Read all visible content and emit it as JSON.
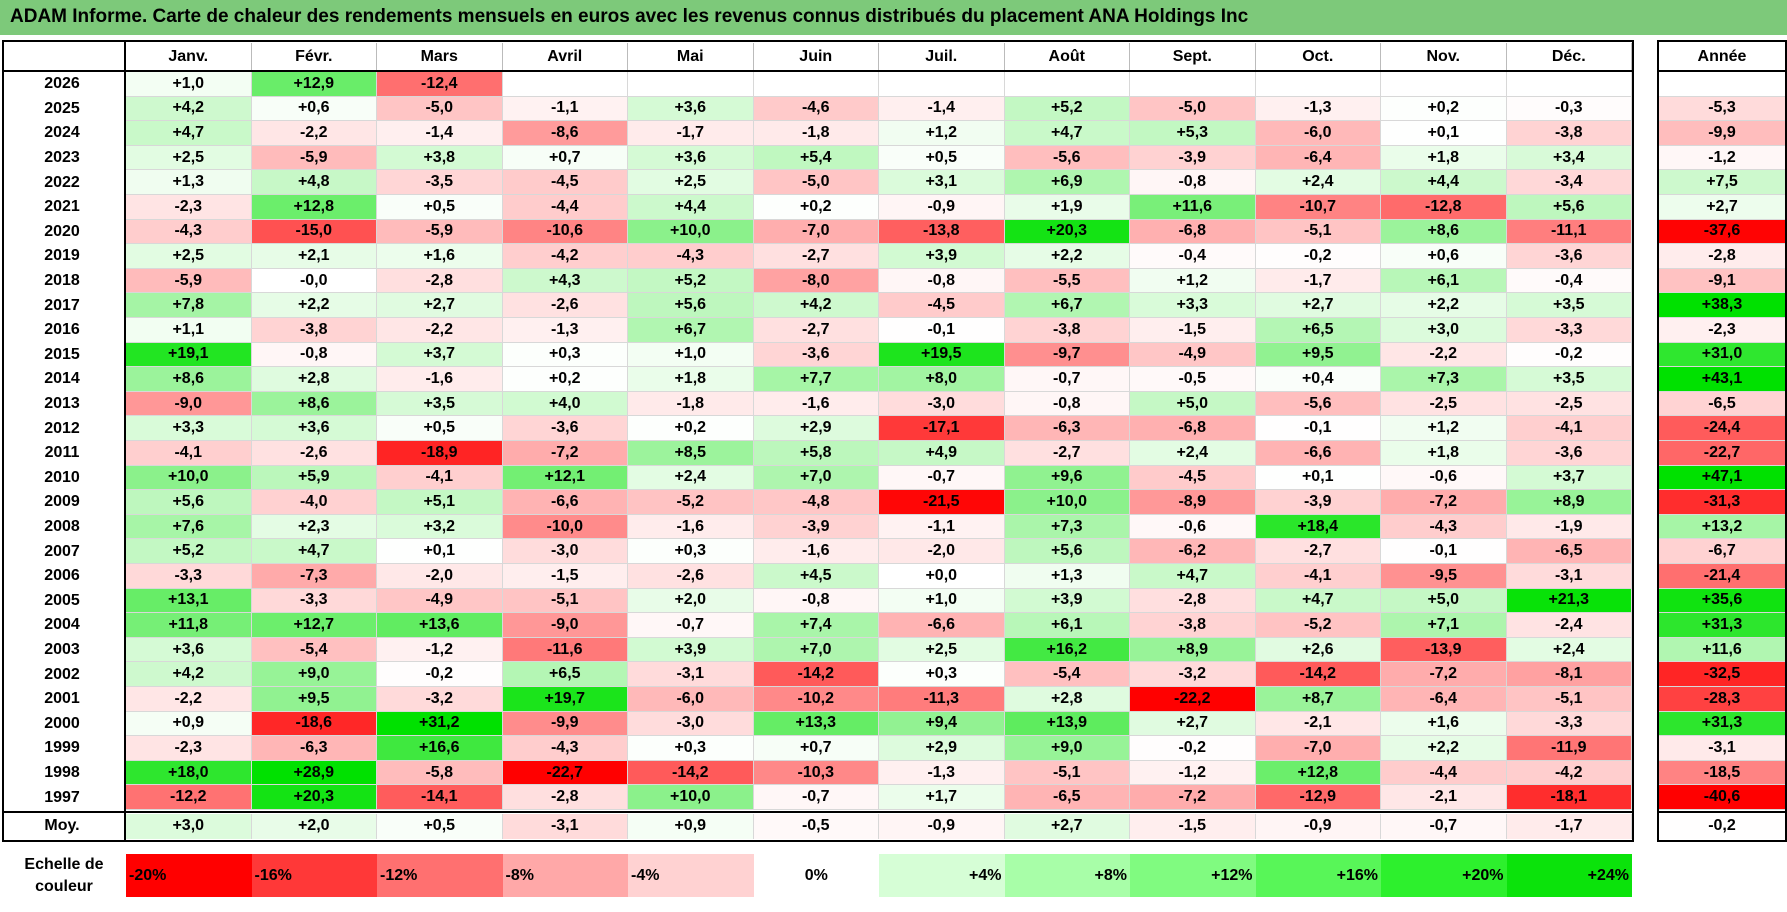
{
  "title": "ADAM Informe. Carte de chaleur des rendements mensuels en euros avec les revenus connus distribués du placement ANA Holdings Inc",
  "chart_data": {
    "type": "heatmap",
    "title": "ADAM Informe. Carte de chaleur des rendements mensuels en euros avec les revenus connus distribués du placement ANA Holdings Inc",
    "columns": [
      "Janv.",
      "Févr.",
      "Mars",
      "Avril",
      "Mai",
      "Juin",
      "Juil.",
      "Août",
      "Sept.",
      "Oct.",
      "Nov.",
      "Déc."
    ],
    "year_column_label": "Année",
    "avg_row_label": "Moy.",
    "rows": [
      {
        "year": "2026",
        "months": [
          "+1,0",
          "+12,9",
          "-12,4",
          "",
          "",
          "",
          "",
          "",
          "",
          "",
          "",
          ""
        ],
        "annual": ""
      },
      {
        "year": "2025",
        "months": [
          "+4,2",
          "+0,6",
          "-5,0",
          "-1,1",
          "+3,6",
          "-4,6",
          "-1,4",
          "+5,2",
          "-5,0",
          "-1,3",
          "+0,2",
          "-0,3"
        ],
        "annual": "-5,3"
      },
      {
        "year": "2024",
        "months": [
          "+4,7",
          "-2,2",
          "-1,4",
          "-8,6",
          "-1,7",
          "-1,8",
          "+1,2",
          "+4,7",
          "+5,3",
          "-6,0",
          "+0,1",
          "-3,8"
        ],
        "annual": "-9,9"
      },
      {
        "year": "2023",
        "months": [
          "+2,5",
          "-5,9",
          "+3,8",
          "+0,7",
          "+3,6",
          "+5,4",
          "+0,5",
          "-5,6",
          "-3,9",
          "-6,4",
          "+1,8",
          "+3,4"
        ],
        "annual": "-1,2"
      },
      {
        "year": "2022",
        "months": [
          "+1,3",
          "+4,8",
          "-3,5",
          "-4,5",
          "+2,5",
          "-5,0",
          "+3,1",
          "+6,9",
          "-0,8",
          "+2,4",
          "+4,4",
          "-3,4"
        ],
        "annual": "+7,5"
      },
      {
        "year": "2021",
        "months": [
          "-2,3",
          "+12,8",
          "+0,5",
          "-4,4",
          "+4,4",
          "+0,2",
          "-0,9",
          "+1,9",
          "+11,6",
          "-10,7",
          "-12,8",
          "+5,6"
        ],
        "annual": "+2,7"
      },
      {
        "year": "2020",
        "months": [
          "-4,3",
          "-15,0",
          "-5,9",
          "-10,6",
          "+10,0",
          "-7,0",
          "-13,8",
          "+20,3",
          "-6,8",
          "-5,1",
          "+8,6",
          "-11,1"
        ],
        "annual": "-37,6"
      },
      {
        "year": "2019",
        "months": [
          "+2,5",
          "+2,1",
          "+1,6",
          "-4,2",
          "-4,3",
          "-2,7",
          "+3,9",
          "+2,2",
          "-0,4",
          "-0,2",
          "+0,6",
          "-3,6"
        ],
        "annual": "-2,8"
      },
      {
        "year": "2018",
        "months": [
          "-5,9",
          "-0,0",
          "-2,8",
          "+4,3",
          "+5,2",
          "-8,0",
          "-0,8",
          "-5,5",
          "+1,2",
          "-1,7",
          "+6,1",
          "-0,4"
        ],
        "annual": "-9,1"
      },
      {
        "year": "2017",
        "months": [
          "+7,8",
          "+2,2",
          "+2,7",
          "-2,6",
          "+5,6",
          "+4,2",
          "-4,5",
          "+6,7",
          "+3,3",
          "+2,7",
          "+2,2",
          "+3,5"
        ],
        "annual": "+38,3"
      },
      {
        "year": "2016",
        "months": [
          "+1,1",
          "-3,8",
          "-2,2",
          "-1,3",
          "+6,7",
          "-2,7",
          "-0,1",
          "-3,8",
          "-1,5",
          "+6,5",
          "+3,0",
          "-3,3"
        ],
        "annual": "-2,3"
      },
      {
        "year": "2015",
        "months": [
          "+19,1",
          "-0,8",
          "+3,7",
          "+0,3",
          "+1,0",
          "-3,6",
          "+19,5",
          "-9,7",
          "-4,9",
          "+9,5",
          "-2,2",
          "-0,2"
        ],
        "annual": "+31,0"
      },
      {
        "year": "2014",
        "months": [
          "+8,6",
          "+2,8",
          "-1,6",
          "+0,2",
          "+1,8",
          "+7,7",
          "+8,0",
          "-0,7",
          "-0,5",
          "+0,4",
          "+7,3",
          "+3,5"
        ],
        "annual": "+43,1"
      },
      {
        "year": "2013",
        "months": [
          "-9,0",
          "+8,6",
          "+3,5",
          "+4,0",
          "-1,8",
          "-1,6",
          "-3,0",
          "-0,8",
          "+5,0",
          "-5,6",
          "-2,5",
          "-2,5"
        ],
        "annual": "-6,5"
      },
      {
        "year": "2012",
        "months": [
          "+3,3",
          "+3,6",
          "+0,5",
          "-3,6",
          "+0,2",
          "+2,9",
          "-17,1",
          "-6,3",
          "-6,8",
          "-0,1",
          "+1,2",
          "-4,1"
        ],
        "annual": "-24,4"
      },
      {
        "year": "2011",
        "months": [
          "-4,1",
          "-2,6",
          "-18,9",
          "-7,2",
          "+8,5",
          "+5,8",
          "+4,9",
          "-2,7",
          "+2,4",
          "-6,6",
          "+1,8",
          "-3,6"
        ],
        "annual": "-22,7"
      },
      {
        "year": "2010",
        "months": [
          "+10,0",
          "+5,9",
          "-4,1",
          "+12,1",
          "+2,4",
          "+7,0",
          "-0,7",
          "+9,6",
          "-4,5",
          "+0,1",
          "-0,6",
          "+3,7"
        ],
        "annual": "+47,1"
      },
      {
        "year": "2009",
        "months": [
          "+5,6",
          "-4,0",
          "+5,1",
          "-6,6",
          "-5,2",
          "-4,8",
          "-21,5",
          "+10,0",
          "-8,9",
          "-3,9",
          "-7,2",
          "+8,9"
        ],
        "annual": "-31,3"
      },
      {
        "year": "2008",
        "months": [
          "+7,6",
          "+2,3",
          "+3,2",
          "-10,0",
          "-1,6",
          "-3,9",
          "-1,1",
          "+7,3",
          "-0,6",
          "+18,4",
          "-4,3",
          "-1,9"
        ],
        "annual": "+13,2"
      },
      {
        "year": "2007",
        "months": [
          "+5,2",
          "+4,7",
          "+0,1",
          "-3,0",
          "+0,3",
          "-1,6",
          "-2,0",
          "+5,6",
          "-6,2",
          "-2,7",
          "-0,1",
          "-6,5"
        ],
        "annual": "-6,7"
      },
      {
        "year": "2006",
        "months": [
          "-3,3",
          "-7,3",
          "-2,0",
          "-1,5",
          "-2,6",
          "+4,5",
          "+0,0",
          "+1,3",
          "+4,7",
          "-4,1",
          "-9,5",
          "-3,1"
        ],
        "annual": "-21,4"
      },
      {
        "year": "2005",
        "months": [
          "+13,1",
          "-3,3",
          "-4,9",
          "-5,1",
          "+2,0",
          "-0,8",
          "+1,0",
          "+3,9",
          "-2,8",
          "+4,7",
          "+5,0",
          "+21,3"
        ],
        "annual": "+35,6"
      },
      {
        "year": "2004",
        "months": [
          "+11,8",
          "+12,7",
          "+13,6",
          "-9,0",
          "-0,7",
          "+7,4",
          "-6,6",
          "+6,1",
          "-3,8",
          "-5,2",
          "+7,1",
          "-2,4"
        ],
        "annual": "+31,3"
      },
      {
        "year": "2003",
        "months": [
          "+3,6",
          "-5,4",
          "-1,2",
          "-11,6",
          "+3,9",
          "+7,0",
          "+2,5",
          "+16,2",
          "+8,9",
          "+2,6",
          "-13,9",
          "+2,4"
        ],
        "annual": "+11,6"
      },
      {
        "year": "2002",
        "months": [
          "+4,2",
          "+9,0",
          "-0,2",
          "+6,5",
          "-3,1",
          "-14,2",
          "+0,3",
          "-5,4",
          "-3,2",
          "-14,2",
          "-7,2",
          "-8,1"
        ],
        "annual": "-32,5"
      },
      {
        "year": "2001",
        "months": [
          "-2,2",
          "+9,5",
          "-3,2",
          "+19,7",
          "-6,0",
          "-10,2",
          "-11,3",
          "+2,8",
          "-22,2",
          "+8,7",
          "-6,4",
          "-5,1"
        ],
        "annual": "-28,3"
      },
      {
        "year": "2000",
        "months": [
          "+0,9",
          "-18,6",
          "+31,2",
          "-9,9",
          "-3,0",
          "+13,3",
          "+9,4",
          "+13,9",
          "+2,7",
          "-2,1",
          "+1,6",
          "-3,3"
        ],
        "annual": "+31,3"
      },
      {
        "year": "1999",
        "months": [
          "-2,3",
          "-6,3",
          "+16,6",
          "-4,3",
          "+0,3",
          "+0,7",
          "+2,9",
          "+9,0",
          "-0,2",
          "-7,0",
          "+2,2",
          "-11,9"
        ],
        "annual": "-3,1"
      },
      {
        "year": "1998",
        "months": [
          "+18,0",
          "+28,9",
          "-5,8",
          "-22,7",
          "-14,2",
          "-10,3",
          "-1,3",
          "-5,1",
          "-1,2",
          "+12,8",
          "-4,4",
          "-4,2"
        ],
        "annual": "-18,5"
      },
      {
        "year": "1997",
        "months": [
          "-12,2",
          "+20,3",
          "-14,1",
          "-2,8",
          "+10,0",
          "-0,7",
          "+1,7",
          "-6,5",
          "-7,2",
          "-12,9",
          "-2,1",
          "-18,1"
        ],
        "annual": "-40,6"
      }
    ],
    "averages": [
      "+3,0",
      "+2,0",
      "+0,5",
      "-3,1",
      "+0,9",
      "-0,5",
      "-0,9",
      "+2,7",
      "-1,5",
      "-0,9",
      "-0,7",
      "-1,7"
    ],
    "average_annual": "-0,2",
    "legend_label": "Echelle de couleur",
    "legend_steps": [
      {
        "label": "-20%",
        "value": -20,
        "color": "#ff0000"
      },
      {
        "label": "-16%",
        "value": -16,
        "color": "#ff3838"
      },
      {
        "label": "-12%",
        "value": -12,
        "color": "#ff7070"
      },
      {
        "label": "-8%",
        "value": -8,
        "color": "#ffa8a8"
      },
      {
        "label": "-4%",
        "value": -4,
        "color": "#ffd2d2"
      },
      {
        "label": "0%",
        "value": 0,
        "color": "#ffffff"
      },
      {
        "label": "+4%",
        "value": 4,
        "color": "#d6fed6"
      },
      {
        "label": "+8%",
        "value": 8,
        "color": "#a8fea8"
      },
      {
        "label": "+12%",
        "value": 12,
        "color": "#80fb80"
      },
      {
        "label": "+16%",
        "value": 16,
        "color": "#58f658"
      },
      {
        "label": "+20%",
        "value": 20,
        "color": "#2df02d"
      },
      {
        "label": "+24%",
        "value": 24,
        "color": "#0be30b"
      }
    ]
  }
}
